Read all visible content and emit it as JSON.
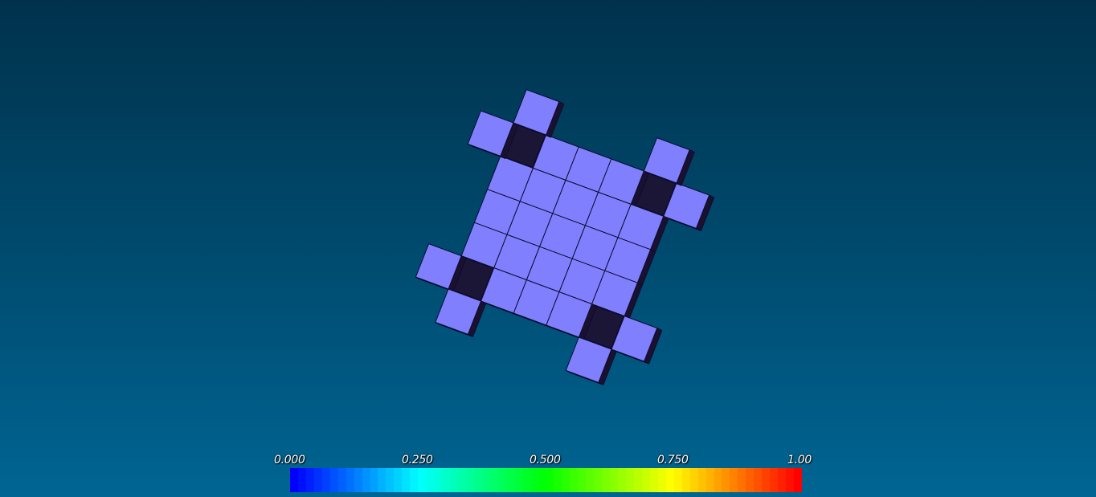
{
  "colorbar": {
    "labels": [
      "0.000",
      "0.250",
      "0.500",
      "0.750",
      "1.00"
    ],
    "colors": [
      "#0000ff",
      "#00ffff",
      "#00ff00",
      "#ffff00",
      "#ff0000"
    ],
    "bands": 64
  },
  "model": {
    "face_color": "#8080ff",
    "edge_color": "#0c0c30",
    "shadow_color": "#1a1030",
    "main_grid": [
      5,
      5
    ],
    "corner_cubes": 8
  }
}
